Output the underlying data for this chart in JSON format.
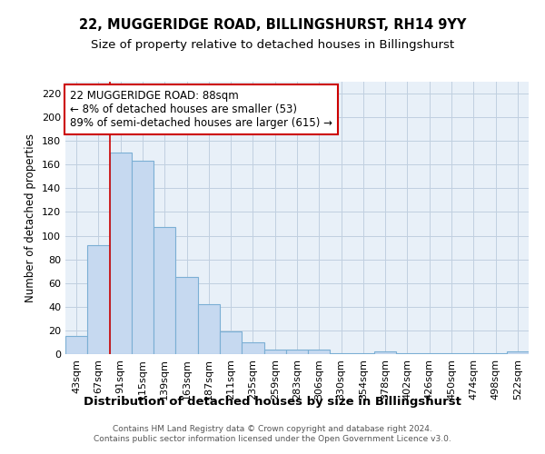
{
  "title": "22, MUGGERIDGE ROAD, BILLINGSHURST, RH14 9YY",
  "subtitle": "Size of property relative to detached houses in Billingshurst",
  "xlabel": "Distribution of detached houses by size in Billingshurst",
  "ylabel": "Number of detached properties",
  "footer_line1": "Contains HM Land Registry data © Crown copyright and database right 2024.",
  "footer_line2": "Contains public sector information licensed under the Open Government Licence v3.0.",
  "categories": [
    "43sqm",
    "67sqm",
    "91sqm",
    "115sqm",
    "139sqm",
    "163sqm",
    "187sqm",
    "211sqm",
    "235sqm",
    "259sqm",
    "283sqm",
    "306sqm",
    "330sqm",
    "354sqm",
    "378sqm",
    "402sqm",
    "426sqm",
    "450sqm",
    "474sqm",
    "498sqm",
    "522sqm"
  ],
  "bar_values": [
    15,
    92,
    170,
    163,
    107,
    65,
    42,
    19,
    10,
    4,
    4,
    4,
    1,
    1,
    2,
    1,
    1,
    1,
    1,
    1,
    2
  ],
  "bar_color": "#c6d9f0",
  "bar_edge_color": "#7bafd4",
  "ylim": [
    0,
    230
  ],
  "yticks": [
    0,
    20,
    40,
    60,
    80,
    100,
    120,
    140,
    160,
    180,
    200,
    220
  ],
  "vline_index": 2,
  "vline_color": "#cc0000",
  "annotation_text": "22 MUGGERIDGE ROAD: 88sqm\n← 8% of detached houses are smaller (53)\n89% of semi-detached houses are larger (615) →",
  "annotation_box_color": "#ffffff",
  "annotation_box_edge_color": "#cc0000",
  "background_color": "#ffffff",
  "axes_bg_color": "#e8f0f8",
  "grid_color": "#c0cfe0",
  "title_fontsize": 10.5,
  "subtitle_fontsize": 9.5,
  "xlabel_fontsize": 9.5,
  "ylabel_fontsize": 8.5,
  "tick_fontsize": 8,
  "annotation_fontsize": 8.5,
  "footer_fontsize": 6.5
}
